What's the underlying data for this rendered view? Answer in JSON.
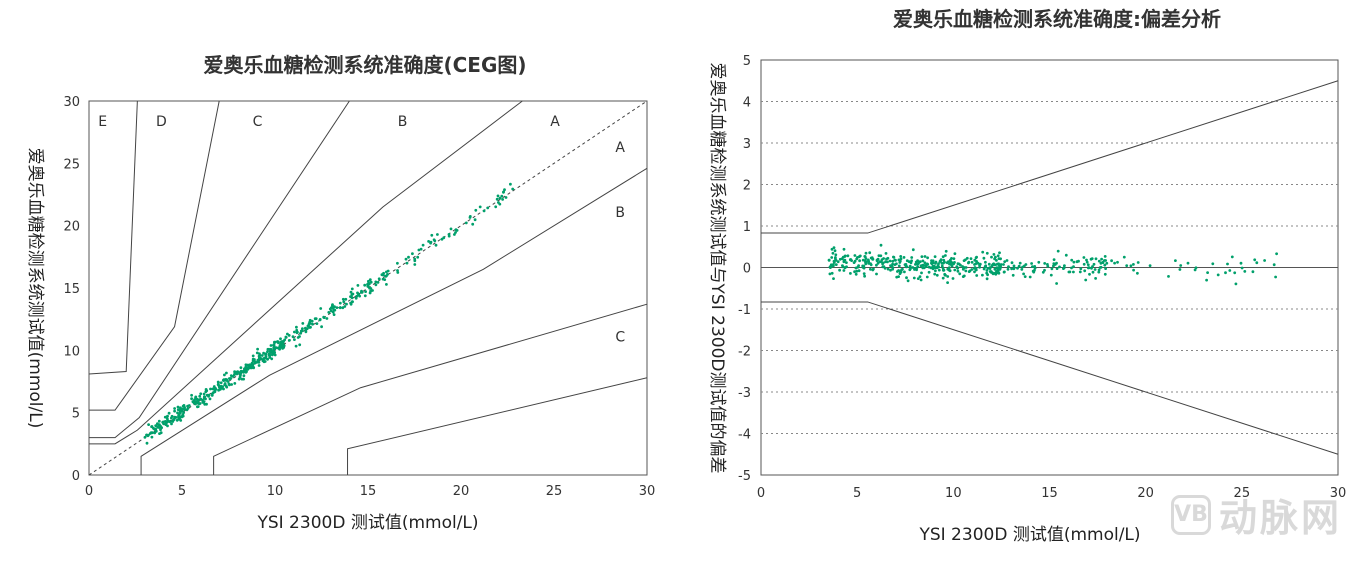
{
  "chart_data": [
    {
      "type": "scatter",
      "title": "爱奥乐血糖检测系统准确度(CEG图)",
      "xlabel": "YSI 2300D 测试值(mmol/L)",
      "ylabel": "爱奥乐血糖检测系统测试值(mmol/L)",
      "xlim": [
        0,
        30
      ],
      "ylim": [
        0,
        30
      ],
      "xticks": [
        0,
        5,
        10,
        15,
        20,
        25,
        30
      ],
      "yticks": [
        0,
        5,
        10,
        15,
        20,
        25,
        30
      ],
      "zones": [
        "E",
        "D",
        "C",
        "B",
        "A",
        "A",
        "B",
        "C"
      ],
      "identity_line": true,
      "point_count": 500,
      "point_range_x": [
        3.0,
        23.0
      ],
      "bias_relation": "y ≈ x + 0.1 ± 0.3"
    },
    {
      "type": "scatter",
      "title": "爱奥乐血糖检测系统准确度:偏差分析",
      "xlabel": "YSI 2300D 测试值(mmol/L)",
      "ylabel": "爱奥乐血糖检测系统测试值与YSI 2300D测试值的偏差",
      "xlim": [
        0,
        30
      ],
      "ylim": [
        -5,
        5
      ],
      "xticks": [
        0,
        5,
        10,
        15,
        20,
        25,
        30
      ],
      "yticks": [
        5,
        4,
        3,
        2,
        1,
        0,
        -1,
        -2,
        -3,
        -4,
        -5
      ],
      "limit_lines": {
        "x": [
          0,
          5.55,
          30
        ],
        "upper": [
          0.83,
          0.83,
          4.5
        ],
        "lower": [
          -0.83,
          -0.83,
          -4.5
        ]
      },
      "point_count": 500,
      "point_range_x": [
        3.5,
        27.2
      ],
      "bias_range": [
        -0.5,
        0.55
      ]
    }
  ],
  "watermark": {
    "logo": "VB",
    "text": "动脉网"
  }
}
